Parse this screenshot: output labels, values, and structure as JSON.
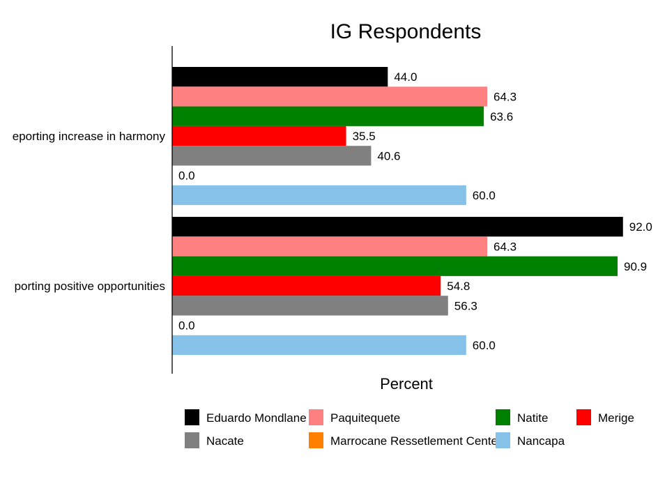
{
  "chart_data": {
    "type": "bar",
    "orientation": "horizontal",
    "title": "IG Respondents",
    "xlabel": "Percent",
    "ylabel": "",
    "xlim": [
      0,
      100
    ],
    "grid": false,
    "legend_position": "bottom",
    "categories": [
      "eporting increase in harmony",
      "porting positive opportunities"
    ],
    "series": [
      {
        "name": "Eduardo Mondlane",
        "color": "#000000",
        "values": [
          44.0,
          92.0
        ],
        "labels": [
          "44.0",
          "92.0"
        ]
      },
      {
        "name": "Paquitequete",
        "color": "#FF8080",
        "values": [
          64.3,
          64.3
        ],
        "labels": [
          "64.3",
          "64.3"
        ]
      },
      {
        "name": "Natite",
        "color": "#008000",
        "values": [
          63.6,
          90.9
        ],
        "labels": [
          "63.6",
          "90.9"
        ]
      },
      {
        "name": "Merige",
        "color": "#FF0000",
        "values": [
          35.5,
          54.8
        ],
        "labels": [
          "35.5",
          "54.8"
        ]
      },
      {
        "name": "Nacate",
        "color": "#808080",
        "values": [
          40.6,
          56.3
        ],
        "labels": [
          "40.6",
          "56.3"
        ]
      },
      {
        "name": "Marrocane Ressetlement Cente",
        "color": "#FF8000",
        "values": [
          0.0,
          0.0
        ],
        "labels": [
          "0.0",
          "0.0"
        ]
      },
      {
        "name": "Nancapa",
        "color": "#85C1E9",
        "values": [
          60.0,
          60.0
        ],
        "labels": [
          "60.0",
          "60.0"
        ]
      }
    ]
  }
}
